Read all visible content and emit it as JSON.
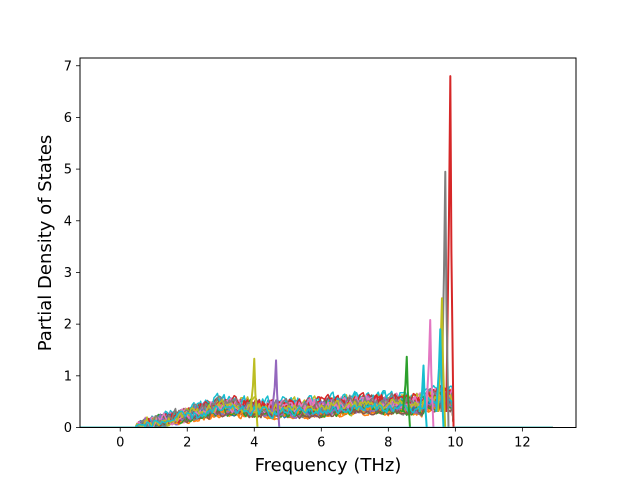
{
  "chart_data": {
    "type": "line",
    "title": "",
    "xlabel": "Frequency (THz)",
    "ylabel": "Partial Density of States",
    "xlim": [
      -1.2,
      13.6
    ],
    "ylim": [
      0,
      7.15
    ],
    "xticks": [
      0,
      2,
      4,
      6,
      8,
      10,
      12
    ],
    "yticks": [
      0,
      1,
      2,
      3,
      4,
      5,
      6,
      7
    ],
    "grid": false,
    "legend": "none",
    "x_range_of_data": [
      -1.2,
      12.9
    ],
    "dominant_peaks": [
      {
        "x": 9.85,
        "y": 6.8,
        "color": "#d62728"
      },
      {
        "x": 9.7,
        "y": 4.95,
        "color": "#7f7f7f"
      },
      {
        "x": 9.6,
        "y": 2.5,
        "color": "#bcbd22"
      },
      {
        "x": 9.25,
        "y": 2.08,
        "color": "#e377c2"
      },
      {
        "x": 9.55,
        "y": 1.9,
        "color": "#17becf"
      },
      {
        "x": 8.55,
        "y": 1.37,
        "color": "#2ca02c"
      },
      {
        "x": 4.0,
        "y": 1.33,
        "color": "#bcbd22"
      },
      {
        "x": 4.65,
        "y": 1.3,
        "color": "#9467bd"
      },
      {
        "x": 9.05,
        "y": 1.2,
        "color": "#17becf"
      }
    ],
    "series_colors": [
      "#1f77b4",
      "#ff7f0e",
      "#2ca02c",
      "#d62728",
      "#9467bd",
      "#8c564b",
      "#e377c2",
      "#7f7f7f",
      "#bcbd22",
      "#17becf"
    ]
  }
}
